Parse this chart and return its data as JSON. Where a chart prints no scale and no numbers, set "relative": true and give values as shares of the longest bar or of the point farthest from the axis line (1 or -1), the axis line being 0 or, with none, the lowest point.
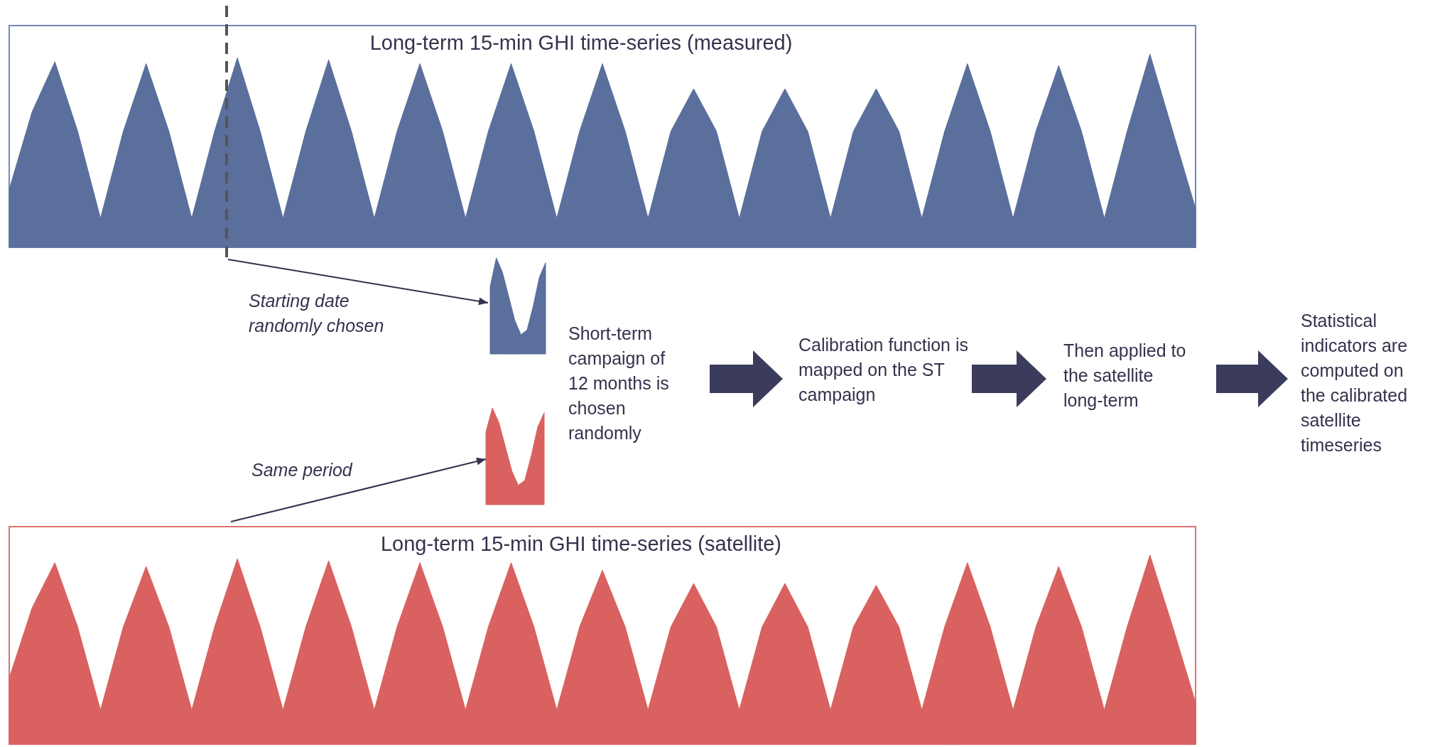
{
  "chart_data": [
    {
      "type": "area",
      "title": "Long-term 15-min GHI time-series (measured)",
      "relative": true,
      "categories": [
        null,
        null,
        null,
        null,
        null,
        null,
        null,
        null,
        null,
        null,
        null,
        null,
        null,
        null,
        null,
        null,
        null,
        null,
        null,
        null,
        null,
        null,
        null,
        null,
        null,
        null,
        null,
        null,
        null,
        null,
        null,
        null,
        null,
        null,
        null,
        null,
        null,
        null,
        null,
        null,
        null,
        null,
        null,
        null,
        null,
        null,
        null,
        null,
        null,
        null,
        null,
        null,
        null
      ],
      "series": [
        {
          "color": "#5b6f9c",
          "values": [
            0.3,
            0.7,
            0.96,
            0.6,
            0.15,
            0.6,
            0.95,
            0.6,
            0.15,
            0.6,
            0.98,
            0.6,
            0.15,
            0.6,
            0.97,
            0.6,
            0.15,
            0.6,
            0.95,
            0.6,
            0.15,
            0.6,
            0.95,
            0.6,
            0.15,
            0.6,
            0.95,
            0.6,
            0.15,
            0.6,
            0.82,
            0.6,
            0.15,
            0.6,
            0.82,
            0.6,
            0.15,
            0.6,
            0.82,
            0.6,
            0.15,
            0.6,
            0.95,
            0.6,
            0.15,
            0.6,
            0.94,
            0.6,
            0.15,
            0.6,
            1,
            0.6,
            0.2
          ]
        }
      ]
    },
    {
      "type": "area",
      "relative": true,
      "categories": [
        null,
        null,
        null,
        null,
        null,
        null,
        null,
        null,
        null,
        null
      ],
      "series": [
        {
          "color": "#5b6f9c",
          "values": [
            0.7,
            1,
            0.85,
            0.6,
            0.35,
            0.2,
            0.25,
            0.5,
            0.8,
            0.95
          ]
        }
      ]
    },
    {
      "type": "area",
      "relative": true,
      "categories": [
        null,
        null,
        null,
        null,
        null,
        null,
        null,
        null,
        null,
        null
      ],
      "series": [
        {
          "color": "#d9615f",
          "values": [
            0.75,
            1,
            0.85,
            0.6,
            0.35,
            0.2,
            0.25,
            0.5,
            0.8,
            0.95
          ]
        }
      ]
    },
    {
      "type": "area",
      "title": "Long-term 15-min GHI time-series (satellite)",
      "relative": true,
      "categories": [
        null,
        null,
        null,
        null,
        null,
        null,
        null,
        null,
        null,
        null,
        null,
        null,
        null,
        null,
        null,
        null,
        null,
        null,
        null,
        null,
        null,
        null,
        null,
        null,
        null,
        null,
        null,
        null,
        null,
        null,
        null,
        null,
        null,
        null,
        null,
        null,
        null,
        null,
        null,
        null,
        null,
        null,
        null,
        null,
        null,
        null,
        null,
        null,
        null,
        null,
        null,
        null,
        null
      ],
      "series": [
        {
          "color": "#d9615f",
          "values": [
            0.35,
            0.72,
            0.96,
            0.62,
            0.18,
            0.62,
            0.94,
            0.62,
            0.18,
            0.62,
            0.98,
            0.62,
            0.18,
            0.62,
            0.97,
            0.62,
            0.18,
            0.62,
            0.96,
            0.62,
            0.18,
            0.62,
            0.96,
            0.62,
            0.18,
            0.62,
            0.92,
            0.62,
            0.18,
            0.62,
            0.85,
            0.62,
            0.18,
            0.62,
            0.85,
            0.62,
            0.18,
            0.62,
            0.84,
            0.62,
            0.18,
            0.62,
            0.96,
            0.62,
            0.18,
            0.62,
            0.94,
            0.62,
            0.18,
            0.62,
            1,
            0.62,
            0.22
          ]
        }
      ]
    },
    {
      "type": "other",
      "annotations": [
        "Starting date randomly chosen",
        "Same period",
        "Short-term campaign of 12 months is chosen randomly",
        "Calibration function is mapped on the ST campaign",
        "Then applied to the satellite long-term",
        "Statistical indicators are computed on the calibrated satellite timeseries"
      ]
    }
  ]
}
